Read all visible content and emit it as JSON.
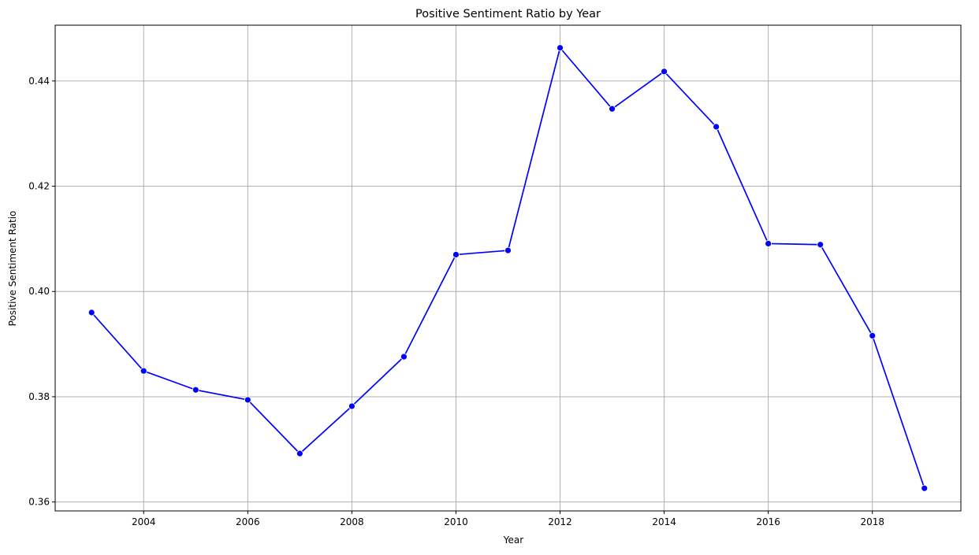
{
  "chart_data": {
    "type": "line",
    "title": "Positive Sentiment Ratio by Year",
    "xlabel": "Year",
    "ylabel": "Positive Sentiment Ratio",
    "xlim": [
      2002.3,
      2019.7
    ],
    "ylim": [
      0.3583,
      0.4506
    ],
    "xticks": [
      2004,
      2006,
      2008,
      2010,
      2012,
      2014,
      2016,
      2018
    ],
    "yticks": [
      0.36,
      0.38,
      0.4,
      0.42,
      0.44
    ],
    "ytick_labels": [
      "0.36",
      "0.38",
      "0.40",
      "0.42",
      "0.44"
    ],
    "grid": true,
    "legend": "none",
    "line_color": "#0000ff",
    "marker_color": "#0000ff",
    "series": [
      {
        "x": [
          2003,
          2004,
          2005,
          2006,
          2007,
          2008,
          2009,
          2010,
          2011,
          2012,
          2013,
          2014,
          2015,
          2016,
          2017,
          2018,
          2019
        ],
        "values": [
          0.396,
          0.3849,
          0.3813,
          0.3794,
          0.3692,
          0.3782,
          0.3876,
          0.407,
          0.4078,
          0.4463,
          0.4347,
          0.4418,
          0.4313,
          0.4091,
          0.4089,
          0.3916,
          0.3626
        ]
      }
    ]
  }
}
